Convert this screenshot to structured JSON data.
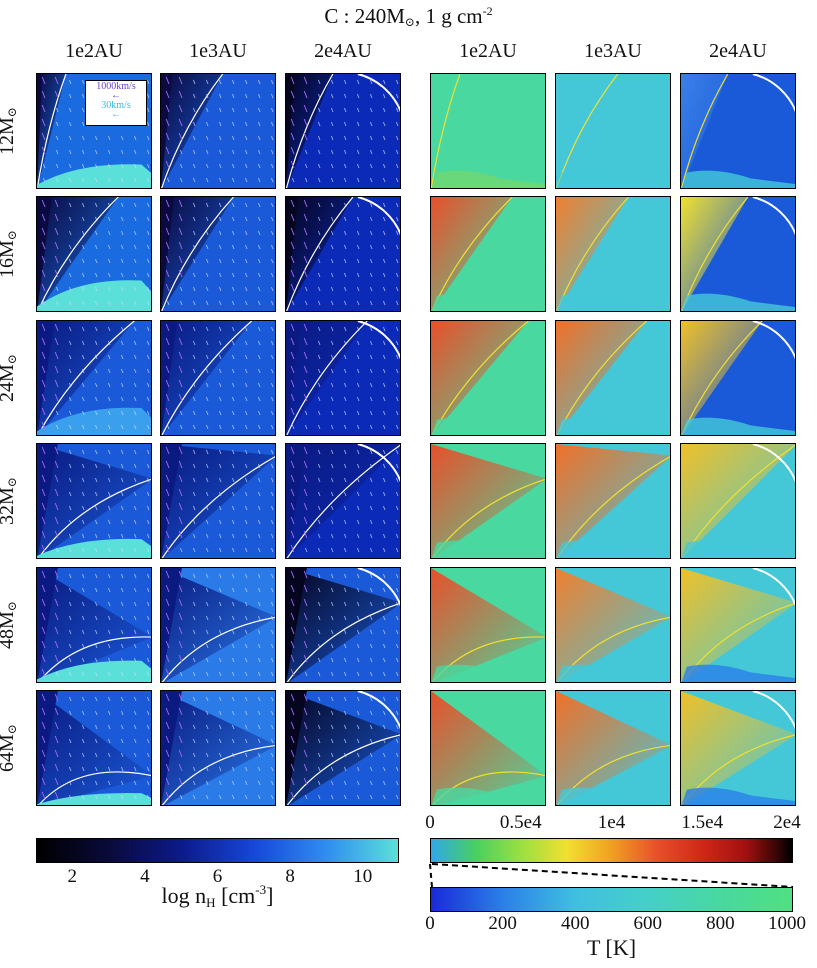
{
  "title": {
    "prefix": "C : 240M",
    "sub": "⊙",
    "mid": ", 1 g cm",
    "sup": "-2"
  },
  "column_headers": [
    "1e2AU",
    "1e3AU",
    "2e4AU",
    "1e2AU",
    "1e3AU",
    "2e4AU"
  ],
  "row_headers": [
    {
      "mass": "12M",
      "sub": "⊙"
    },
    {
      "mass": "16M",
      "sub": "⊙"
    },
    {
      "mass": "24M",
      "sub": "⊙"
    },
    {
      "mass": "32M",
      "sub": "⊙"
    },
    {
      "mass": "48M",
      "sub": "⊙"
    },
    {
      "mass": "64M",
      "sub": "⊙"
    }
  ],
  "velocity_legend": {
    "fast": "1000km/s",
    "slow": "30km/s",
    "fast_color": "#6a3fc8",
    "slow_color": "#3bb6e0"
  },
  "chart_data": {
    "type": "heatmap",
    "panel_grid": {
      "rows": 6,
      "cols": 6
    },
    "density_colorbar": {
      "label_main": "log n",
      "label_sub": "H",
      "label_unit": " [cm",
      "label_sup": "-3",
      "label_close": "]",
      "ticks": [
        "2",
        "4",
        "6",
        "8",
        "10"
      ],
      "range": [
        1,
        11
      ],
      "colors": [
        "#000000",
        "#0a0a3a",
        "#0c1a8a",
        "#1646d8",
        "#2f8df0",
        "#5ae0d8"
      ]
    },
    "temperature_colorbar_high": {
      "ticks": [
        "0",
        "0.5e4",
        "1e4",
        "1.5e4",
        "2e4"
      ],
      "range": [
        0,
        20000
      ],
      "colors": [
        "#2fa8e8",
        "#48d060",
        "#9ae040",
        "#f0e030",
        "#f0a020",
        "#e8502a",
        "#d02818",
        "#a01010",
        "#000000"
      ]
    },
    "temperature_colorbar_low": {
      "label": "T [K]",
      "ticks": [
        "0",
        "200",
        "400",
        "600",
        "800",
        "1000"
      ],
      "range": [
        0,
        1000
      ],
      "colors": [
        "#1a2ad8",
        "#2a80e8",
        "#40c0e0",
        "#44d0c8",
        "#48d8a0",
        "#50e080"
      ]
    },
    "density_panels": [
      {
        "mass": "12",
        "scale": "1e2AU",
        "bg": "#1a6ae0",
        "cone_angle": 14,
        "disk_height": 0.22,
        "disk_color": "#5ae0d8",
        "dark": "#0a0a40"
      },
      {
        "mass": "12",
        "scale": "1e3AU",
        "bg": "#1a5ad8",
        "cone_angle": 28,
        "disk_height": 0.0,
        "disk_color": "#2a8aee",
        "dark": "#0a0a40"
      },
      {
        "mass": "12",
        "scale": "2e4AU",
        "bg": "#0c2ab8",
        "cone_angle": 22,
        "disk_height": 0.0,
        "disk_color": "#0c2ab8",
        "dark": "#050520"
      },
      {
        "mass": "16",
        "scale": "1e2AU",
        "bg": "#1a6ae0",
        "cone_angle": 35,
        "disk_height": 0.28,
        "disk_color": "#5ae0d8",
        "dark": "#0a0a40"
      },
      {
        "mass": "16",
        "scale": "1e3AU",
        "bg": "#1a5ad8",
        "cone_angle": 32,
        "disk_height": 0.0,
        "disk_color": "#2a8aee",
        "dark": "#0a0a40"
      },
      {
        "mass": "16",
        "scale": "2e4AU",
        "bg": "#0c2ab8",
        "cone_angle": 30,
        "disk_height": 0.0,
        "disk_color": "#0c2ab8",
        "dark": "#050520"
      },
      {
        "mass": "24",
        "scale": "1e2AU",
        "bg": "#1a5ad8",
        "cone_angle": 40,
        "disk_height": 0.25,
        "disk_color": "#3aa0ee",
        "dark": "#0a1a80"
      },
      {
        "mass": "24",
        "scale": "1e3AU",
        "bg": "#1a5ad8",
        "cone_angle": 38,
        "disk_height": 0.0,
        "disk_color": "#2a8aee",
        "dark": "#0a1a80"
      },
      {
        "mass": "24",
        "scale": "2e4AU",
        "bg": "#0c2ab8",
        "cone_angle": 35,
        "disk_height": 0.0,
        "disk_color": "#0c2ab8",
        "dark": "#0a1a80"
      },
      {
        "mass": "32",
        "scale": "1e2AU",
        "bg": "#1a5ad8",
        "cone_angle": 55,
        "disk_height": 0.18,
        "disk_color": "#5ae0d8",
        "dark": "#0a1a80"
      },
      {
        "mass": "32",
        "scale": "1e3AU",
        "bg": "#1a5ad8",
        "cone_angle": 48,
        "disk_height": 0.0,
        "disk_color": "#2a8aee",
        "dark": "#0a1a80"
      },
      {
        "mass": "32",
        "scale": "2e4AU",
        "bg": "#0c2ab8",
        "cone_angle": 45,
        "disk_height": 0.0,
        "disk_color": "#0c2ab8",
        "dark": "#0a1a80"
      },
      {
        "mass": "48",
        "scale": "1e2AU",
        "bg": "#1a5ad8",
        "cone_angle": 68,
        "disk_height": 0.2,
        "disk_color": "#5ae0d8",
        "dark": "#0a1a80"
      },
      {
        "mass": "48",
        "scale": "1e3AU",
        "bg": "#2a7ae8",
        "cone_angle": 60,
        "disk_height": 0.0,
        "disk_color": "#2a7ae8",
        "dark": "#0a1a80"
      },
      {
        "mass": "48",
        "scale": "2e4AU",
        "bg": "#1a5ad8",
        "cone_angle": 55,
        "disk_height": 0.0,
        "disk_color": "#1a5ad8",
        "dark": "#050520"
      },
      {
        "mass": "64",
        "scale": "1e2AU",
        "bg": "#1a5ad8",
        "cone_angle": 75,
        "disk_height": 0.12,
        "disk_color": "#5ae0d8",
        "dark": "#0a1a80"
      },
      {
        "mass": "64",
        "scale": "1e3AU",
        "bg": "#2a7ae8",
        "cone_angle": 62,
        "disk_height": 0.0,
        "disk_color": "#2a7ae8",
        "dark": "#0a1a80"
      },
      {
        "mass": "64",
        "scale": "2e4AU",
        "bg": "#1a5ad8",
        "cone_angle": 58,
        "disk_height": 0.0,
        "disk_color": "#1a5ad8",
        "dark": "#050520"
      }
    ],
    "temperature_panels": [
      {
        "mass": "12",
        "scale": "1e2AU",
        "bg": "#48d8a0",
        "hot": "#48d8a0",
        "cone_angle": 14,
        "base": "#70d870"
      },
      {
        "mass": "12",
        "scale": "1e3AU",
        "bg": "#44c8d8",
        "hot": "#44c8d8",
        "cone_angle": 28,
        "base": "#44c8d8"
      },
      {
        "mass": "12",
        "scale": "2e4AU",
        "bg": "#1a5ad8",
        "hot": "#3a80e8",
        "cone_angle": 22,
        "base": "#44c8d8"
      },
      {
        "mass": "16",
        "scale": "1e2AU",
        "bg": "#48d8a0",
        "hot": "#e8502a",
        "cone_angle": 35,
        "base": "#48d8a0"
      },
      {
        "mass": "16",
        "scale": "1e3AU",
        "bg": "#44c8d8",
        "hot": "#f08030",
        "cone_angle": 32,
        "base": "#44c8d8"
      },
      {
        "mass": "16",
        "scale": "2e4AU",
        "bg": "#1a5ad8",
        "hot": "#f0e030",
        "cone_angle": 30,
        "base": "#44c8d8"
      },
      {
        "mass": "24",
        "scale": "1e2AU",
        "bg": "#48d8a0",
        "hot": "#e8502a",
        "cone_angle": 40,
        "base": "#48d8a0"
      },
      {
        "mass": "24",
        "scale": "1e3AU",
        "bg": "#44c8d8",
        "hot": "#f07028",
        "cone_angle": 38,
        "base": "#44c8d8"
      },
      {
        "mass": "24",
        "scale": "2e4AU",
        "bg": "#1a5ad8",
        "hot": "#f0c028",
        "cone_angle": 35,
        "base": "#44c8d8"
      },
      {
        "mass": "32",
        "scale": "1e2AU",
        "bg": "#48d8a0",
        "hot": "#e8502a",
        "cone_angle": 55,
        "base": "#48d8a0"
      },
      {
        "mass": "32",
        "scale": "1e3AU",
        "bg": "#44c8d8",
        "hot": "#f07028",
        "cone_angle": 48,
        "base": "#44c8d8"
      },
      {
        "mass": "32",
        "scale": "2e4AU",
        "bg": "#44c8d8",
        "hot": "#f0c028",
        "cone_angle": 45,
        "base": "#44c8d8"
      },
      {
        "mass": "48",
        "scale": "1e2AU",
        "bg": "#48d8a0",
        "hot": "#e8502a",
        "cone_angle": 68,
        "base": "#48d8a0"
      },
      {
        "mass": "48",
        "scale": "1e3AU",
        "bg": "#44c8d8",
        "hot": "#f08030",
        "cone_angle": 60,
        "base": "#44c8d8"
      },
      {
        "mass": "48",
        "scale": "2e4AU",
        "bg": "#44c8d8",
        "hot": "#f0c028",
        "cone_angle": 55,
        "base": "#2a80e8"
      },
      {
        "mass": "64",
        "scale": "1e2AU",
        "bg": "#48d8a0",
        "hot": "#e8502a",
        "cone_angle": 75,
        "base": "#48d8a0"
      },
      {
        "mass": "64",
        "scale": "1e3AU",
        "bg": "#44c8d8",
        "hot": "#f07028",
        "cone_angle": 62,
        "base": "#44c8d8"
      },
      {
        "mass": "64",
        "scale": "2e4AU",
        "bg": "#44c8d8",
        "hot": "#f0c028",
        "cone_angle": 58,
        "base": "#2a80e8"
      }
    ]
  }
}
